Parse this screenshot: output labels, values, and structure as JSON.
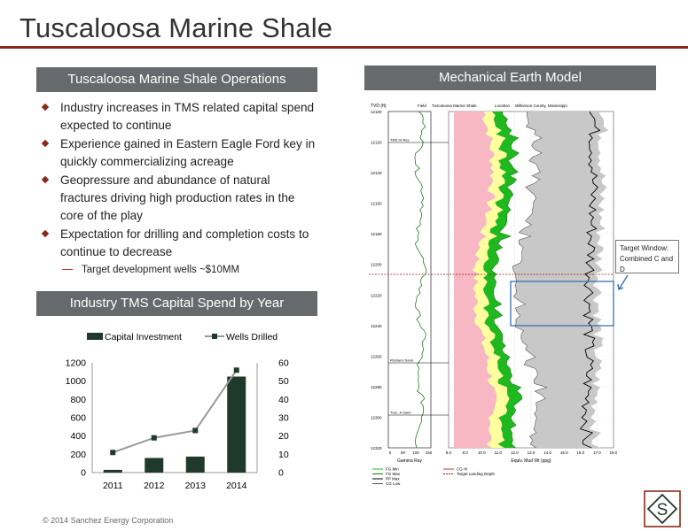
{
  "slide_title": "Tuscaloosa Marine Shale",
  "ops_header": "Tuscaloosa Marine Shale Operations",
  "bullets": [
    "Industry increases in TMS related capital spend expected to continue",
    "Experience gained in Eastern Eagle Ford key in quickly commercializing acreage",
    "Geopressure and abundance of natural fractures driving high production rates in the core of the play",
    "Expectation for drilling and completion costs to continue to decrease"
  ],
  "sub_bullet": "Target development wells ~$10MM",
  "capex_header": "Industry TMS Capital Spend by Year",
  "mem_header": "Mechanical Earth Model",
  "mem": {
    "tvd_label": "TVD (ft)",
    "field_label": "Field",
    "formation_label": "Tuscaloosa Marine Shale",
    "location_label": "Location",
    "location_value": "Wilkinson County, Mississippi",
    "depth_ticks": [
      "12100",
      "12120",
      "12140",
      "12160",
      "12180",
      "12200",
      "12220",
      "12240",
      "12260",
      "12280",
      "12300",
      "12320"
    ],
    "formation_tops": [
      "TMS Hi Res",
      "Richland Sand",
      "Tusc. A Sand"
    ],
    "gamma_ticks": [
      "0",
      "50",
      "100",
      "150"
    ],
    "gamma_label": "Gamma Ray",
    "mud_ticks": [
      "8.0",
      "9.0",
      "10.0",
      "11.0",
      "12.0",
      "13.0",
      "14.0",
      "15.0",
      "16.0",
      "17.0",
      "18.0"
    ],
    "mud_label": "Equiv. Mud Wt (ppg)",
    "callout": [
      "Target Window:",
      "Combined C and D"
    ],
    "legend": [
      "FG Min",
      "FG Max",
      "PP Max",
      "CG Low",
      "CG Hi",
      "Target Landing Depth"
    ]
  },
  "copyright": "© 2014 Sanchez Energy Corporation",
  "logo_letter": "S",
  "colors": {
    "accent": "#8b2a1b",
    "bar": "#1f3a2a",
    "line": "#999999",
    "header_bg": "#666a6d",
    "pink": "#f7b8c4",
    "yellow": "#ffffa0",
    "green": "#1fb81f"
  },
  "chart_data": {
    "type": "bar",
    "categories": [
      "2011",
      "2012",
      "2013",
      "2014"
    ],
    "series": [
      {
        "name": "Capital Investment",
        "type": "bar",
        "axis": "left",
        "values": [
          30,
          160,
          175,
          1050
        ]
      },
      {
        "name": "Wells Drilled",
        "type": "line",
        "axis": "right",
        "values": [
          11,
          19,
          23,
          56
        ]
      }
    ],
    "y_left": {
      "ylim": [
        0,
        1200
      ],
      "ticks": [
        0,
        200,
        400,
        600,
        800,
        1000,
        1200
      ]
    },
    "y_right": {
      "ylim": [
        0,
        60
      ],
      "ticks": [
        0,
        10,
        20,
        30,
        40,
        50,
        60
      ]
    },
    "legend_position": "top",
    "grid": false
  }
}
